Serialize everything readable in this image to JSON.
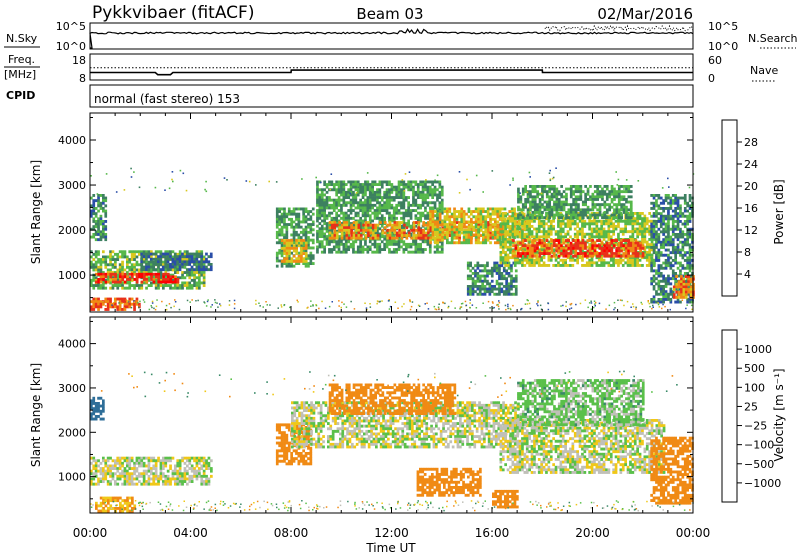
{
  "header": {
    "title": "Pykkvibaer (fitACF)",
    "beam": "Beam 03",
    "date": "02/Mar/2016"
  },
  "nsky": {
    "left_label": "N.Sky",
    "left_ticks": [
      "10^5",
      "10^0"
    ],
    "right_ticks": [
      "10^5",
      "10^0"
    ],
    "right_label": "N.Search"
  },
  "freq": {
    "left_label_1": "Freq.",
    "left_label_2": "[MHz]",
    "left_ticks": [
      "18",
      "8"
    ],
    "right_ticks": [
      "60",
      "0"
    ],
    "right_label": "Nave",
    "series": [
      {
        "name": "Freq.",
        "x": [
          0,
          2.6,
          2.7,
          3.2,
          3.3,
          8.0,
          8.01,
          18.0,
          18.01,
          24
        ],
        "y": [
          10.5,
          10.5,
          9.5,
          9.5,
          10.5,
          10.5,
          11.6,
          11.6,
          10.5,
          10.5
        ]
      },
      {
        "name": "Nave",
        "x": [
          0,
          24
        ],
        "y": [
          28,
          28
        ]
      }
    ]
  },
  "cpid": {
    "label": "CPID",
    "text": "normal (fast stereo) 153"
  },
  "power_panel": {
    "ylabel": "Slant Range [km]",
    "yticks": [
      "4000",
      "3000",
      "2000",
      "1000"
    ],
    "colorbar_label": "Power [dB]",
    "colorbar_ticks": [
      "28",
      "24",
      "20",
      "16",
      "12",
      "8",
      "4"
    ],
    "colors": [
      "#0000ff",
      "#2a4ea8",
      "#3d8060",
      "#56b84a",
      "#d8c81e",
      "#f08a14",
      "#e8301a",
      "#ff0000"
    ]
  },
  "velocity_panel": {
    "ylabel": "Slant Range [km]",
    "yticks": [
      "4000",
      "3000",
      "2000",
      "1000"
    ],
    "colorbar_label": "Velocity [m s⁻¹]",
    "colorbar_ticks": [
      "1000",
      "500",
      "100",
      "25",
      "−25",
      "−100",
      "−500",
      "−1000"
    ],
    "colors": [
      "#1a3aa0",
      "#2e6e98",
      "#3a8a68",
      "#5ac04a",
      "#c0c0b8",
      "#f0c818",
      "#f08a14",
      "#e83a14",
      "#ff0000"
    ]
  },
  "xaxis": {
    "label": "Time UT",
    "ticks": [
      "00:00",
      "04:00",
      "08:00",
      "12:00",
      "16:00",
      "20:00",
      "00:00"
    ]
  },
  "chart_data": {
    "type": "heatmap",
    "x_unit": "hours UT",
    "y_unit": "km",
    "xlim": [
      0,
      24
    ],
    "ylim": [
      180,
      4600
    ],
    "panels": [
      {
        "name": "Power",
        "unit": "dB",
        "clim": [
          0,
          32
        ],
        "regions": [
          {
            "t0": 0.0,
            "t1": 4.5,
            "r0": 700,
            "r1": 1550,
            "v": 14
          },
          {
            "t0": 0.2,
            "t1": 3.5,
            "r0": 850,
            "r1": 1050,
            "v": 27
          },
          {
            "t0": 0.0,
            "t1": 2.0,
            "r0": 250,
            "r1": 500,
            "v": 24
          },
          {
            "t0": 0.0,
            "t1": 0.6,
            "r0": 1800,
            "r1": 2800,
            "v": 10
          },
          {
            "t0": 2.0,
            "t1": 4.8,
            "r0": 1100,
            "r1": 1500,
            "v": 8
          },
          {
            "t0": 7.4,
            "t1": 8.9,
            "r0": 1200,
            "r1": 2500,
            "v": 12
          },
          {
            "t0": 7.6,
            "t1": 8.6,
            "r0": 1300,
            "r1": 1800,
            "v": 20
          },
          {
            "t0": 9.0,
            "t1": 14.0,
            "r0": 1500,
            "r1": 3100,
            "v": 12
          },
          {
            "t0": 9.5,
            "t1": 16.5,
            "r0": 1800,
            "r1": 2200,
            "v": 22
          },
          {
            "t0": 13.5,
            "t1": 17.5,
            "r0": 1700,
            "r1": 2500,
            "v": 18
          },
          {
            "t0": 15.0,
            "t1": 17.0,
            "r0": 600,
            "r1": 1300,
            "v": 10
          },
          {
            "t0": 16.3,
            "t1": 22.5,
            "r0": 1200,
            "r1": 2400,
            "v": 16
          },
          {
            "t0": 16.8,
            "t1": 22.0,
            "r0": 1400,
            "r1": 1800,
            "v": 25
          },
          {
            "t0": 17.0,
            "t1": 21.5,
            "r0": 2300,
            "r1": 3000,
            "v": 12
          },
          {
            "t0": 22.3,
            "t1": 24.0,
            "r0": 400,
            "r1": 2800,
            "v": 10
          },
          {
            "t0": 23.2,
            "t1": 24.0,
            "r0": 500,
            "r1": 1000,
            "v": 22
          }
        ]
      },
      {
        "name": "Velocity",
        "unit": "m s⁻¹",
        "clim": [
          -1000,
          1000
        ],
        "regions": [
          {
            "t0": 0.0,
            "t1": 4.8,
            "r0": 850,
            "r1": 1450,
            "v": 0
          },
          {
            "t0": 0.2,
            "t1": 1.8,
            "r0": 250,
            "r1": 550,
            "v": -120
          },
          {
            "t0": 0.0,
            "t1": 0.5,
            "r0": 2300,
            "r1": 2800,
            "v": 600
          },
          {
            "t0": 7.4,
            "t1": 8.8,
            "r0": 1300,
            "r1": 2200,
            "v": -300
          },
          {
            "t0": 8.0,
            "t1": 17.0,
            "r0": 1700,
            "r1": 2700,
            "v": 0
          },
          {
            "t0": 9.5,
            "t1": 14.5,
            "r0": 2400,
            "r1": 3100,
            "v": -200
          },
          {
            "t0": 13.0,
            "t1": 15.5,
            "r0": 600,
            "r1": 1200,
            "v": -300
          },
          {
            "t0": 16.0,
            "t1": 17.0,
            "r0": 300,
            "r1": 700,
            "v": -300
          },
          {
            "t0": 16.3,
            "t1": 22.8,
            "r0": 1100,
            "r1": 2300,
            "v": 0
          },
          {
            "t0": 17.0,
            "t1": 22.0,
            "r0": 2200,
            "r1": 3200,
            "v": 50
          },
          {
            "t0": 22.3,
            "t1": 24.0,
            "r0": 400,
            "r1": 1900,
            "v": -250
          }
        ]
      }
    ]
  }
}
